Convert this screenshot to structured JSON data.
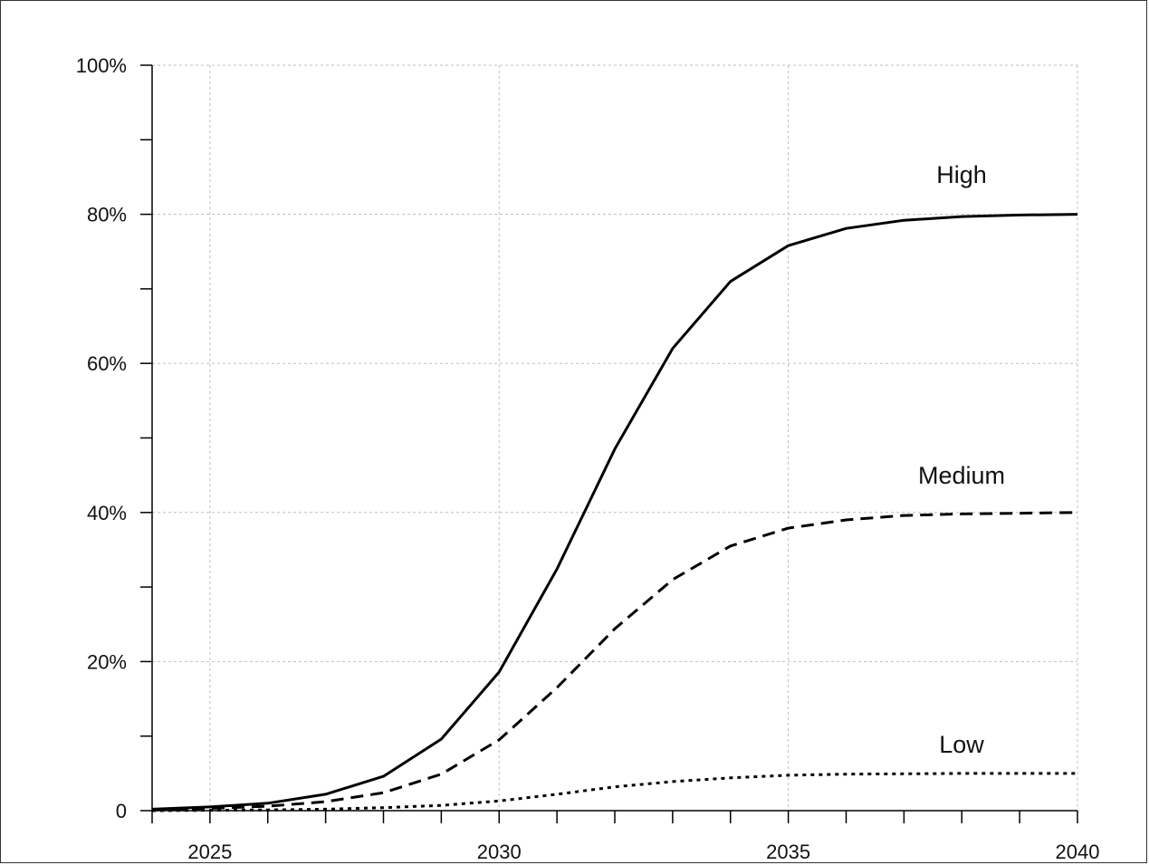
{
  "chart_data": {
    "type": "line",
    "title": "",
    "xlabel": "",
    "ylabel": "",
    "xlim": [
      2024,
      2040
    ],
    "ylim": [
      0,
      100
    ],
    "grid": true,
    "x_ticks": [
      2025,
      2030,
      2035,
      2040
    ],
    "x_tick_labels": [
      "2025",
      "2030",
      "2035",
      "2040"
    ],
    "y_ticks": [
      0,
      20,
      40,
      60,
      80,
      100
    ],
    "y_tick_labels": [
      "0",
      "20%",
      "40%",
      "60%",
      "80%",
      "100%"
    ],
    "x": [
      2024,
      2025,
      2026,
      2027,
      2028,
      2029,
      2030,
      2031,
      2032,
      2033,
      2034,
      2035,
      2036,
      2037,
      2038,
      2039,
      2040
    ],
    "series": [
      {
        "name": "High",
        "style": "solid",
        "values": [
          0.2,
          0.5,
          1.0,
          2.2,
          4.6,
          9.6,
          18.6,
          32.4,
          48.5,
          62.0,
          71.0,
          75.8,
          78.1,
          79.2,
          79.7,
          79.9,
          80.0
        ]
      },
      {
        "name": "Medium",
        "style": "dashed",
        "values": [
          0.1,
          0.3,
          0.6,
          1.2,
          2.4,
          4.9,
          9.5,
          16.5,
          24.4,
          31.0,
          35.5,
          37.9,
          39.0,
          39.6,
          39.8,
          39.9,
          40.0
        ]
      },
      {
        "name": "Low",
        "style": "dotted",
        "values": [
          0.0,
          0.05,
          0.1,
          0.2,
          0.4,
          0.7,
          1.3,
          2.2,
          3.2,
          3.9,
          4.4,
          4.75,
          4.9,
          4.95,
          5.0,
          5.0,
          5.0
        ]
      }
    ],
    "colors": {
      "line": "#000000",
      "grid": "#bfbfbf",
      "axis": "#000000"
    }
  }
}
